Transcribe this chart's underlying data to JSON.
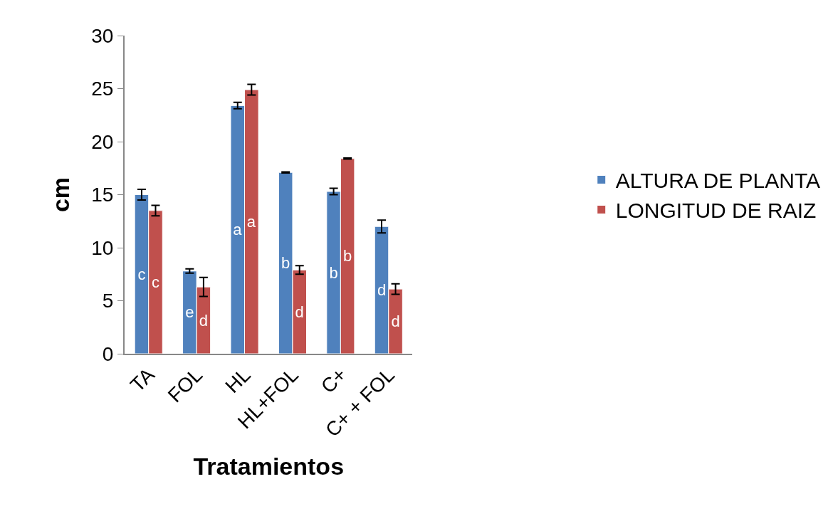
{
  "chart_data": {
    "type": "bar",
    "xlabel": "Tratamientos",
    "ylabel": "cm",
    "categories": [
      "TA",
      "FOL",
      "HL",
      "HL+FOL",
      "C+",
      "C+ + FOL"
    ],
    "series": [
      {
        "name": "ALTURA DE PLANTA",
        "color": "#4f81bd",
        "values": [
          15.0,
          7.8,
          23.4,
          17.1,
          15.3,
          12.0
        ],
        "errors": [
          0.5,
          0.2,
          0.3,
          0.05,
          0.3,
          0.6
        ],
        "value_labels": [
          "c",
          "e",
          "a",
          "b",
          "b",
          "d"
        ]
      },
      {
        "name": "LONGITUD DE RAIZ",
        "color": "#c0504d",
        "values": [
          13.5,
          6.3,
          24.9,
          7.9,
          18.4,
          6.1
        ],
        "errors": [
          0.5,
          0.9,
          0.5,
          0.4,
          0.05,
          0.5
        ],
        "value_labels": [
          "c",
          "d",
          "a",
          "d",
          "b",
          "d"
        ]
      }
    ],
    "ylim": [
      0,
      30
    ],
    "yticks": [
      0,
      5,
      10,
      15,
      20,
      25,
      30
    ],
    "grid": false,
    "legend": "right"
  }
}
